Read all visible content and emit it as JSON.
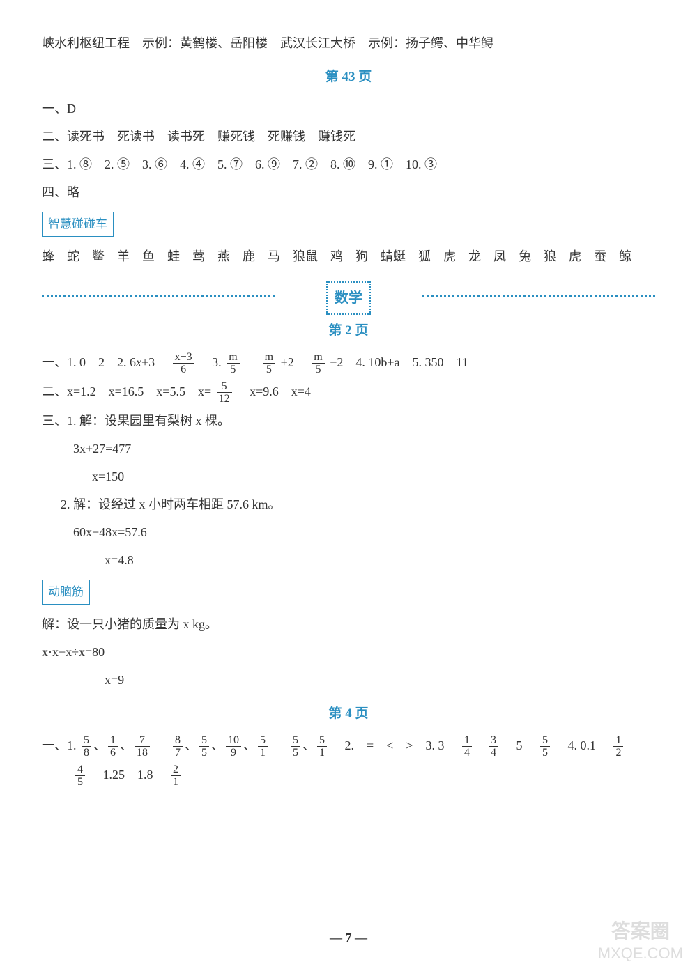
{
  "top_line": "峡水利枢纽工程　示例：黄鹤楼、岳阳楼　武汉长江大桥　示例：扬子鳄、中华鲟",
  "page43": {
    "header": "第 43 页",
    "l1": "一、D",
    "l2": "二、读死书　死读书　读书死　赚死钱　死赚钱　赚钱死",
    "l3": "三、1. ⑧　2. ⑤　3. ⑥　4. ④　5. ⑦　6. ⑨　7. ②　8. ⑩　9. ①　10. ③",
    "l4": "四、略",
    "tag": "智慧碰碰车",
    "l5": "蜂　蛇　鳖　羊　鱼　蛙　莺　燕　鹿　马　狼鼠　鸡　狗　蜻蜓　狐　虎　龙　凤　兔　狼　虎　蚕　鲸"
  },
  "subject": "数学",
  "page2": {
    "header": "第 2 页",
    "q1": {
      "prefix": "一、1. 0　2　2. 6",
      "x3": "x",
      "plus3": "+3　",
      "f1n": "x−3",
      "f1d": "6",
      "mid3": "　3. ",
      "f2n": "m",
      "f2d": "5",
      "sp": "　",
      "f3n": "m",
      "f3d": "5",
      "plus2": "+2　",
      "f4n": "m",
      "f4d": "5",
      "m2": "−2　4. 10b+a　5. 350　11"
    },
    "q2": {
      "prefix": "二、x=1.2　x=16.5　x=5.5　x=",
      "fn": "5",
      "fd": "12",
      "suffix": "　x=9.6　x=4"
    },
    "q3_1a": "三、1. 解：设果园里有梨树 x 棵。",
    "q3_1b": "3x+27=477",
    "q3_1c": "x=150",
    "q3_2a": "2. 解：设经过 x 小时两车相距 57.6 km。",
    "q3_2b": "60x−48x=57.6",
    "q3_2c": "x=4.8",
    "tag": "动脑筋",
    "b1": "解：设一只小猪的质量为 x kg。",
    "b2": "x·x−x÷x=80",
    "b3": "x=9"
  },
  "page4": {
    "header": "第 4 页",
    "line1": {
      "p": "一、1. ",
      "fracs_a": [
        {
          "n": "5",
          "d": "8"
        },
        {
          "n": "1",
          "d": "6"
        },
        {
          "n": "7",
          "d": "18"
        }
      ],
      "sep1": "　",
      "fracs_b": [
        {
          "n": "8",
          "d": "7"
        },
        {
          "n": "5",
          "d": "5"
        },
        {
          "n": "10",
          "d": "9"
        },
        {
          "n": "5",
          "d": "1"
        }
      ],
      "sep2": "　",
      "fracs_c": [
        {
          "n": "5",
          "d": "5"
        },
        {
          "n": "5",
          "d": "1"
        }
      ],
      "m2": "　2.　=　<　>　3. 3　",
      "fracs_d": [
        {
          "n": "1",
          "d": "4"
        },
        {
          "n": "3",
          "d": "4"
        }
      ],
      "five": "　5　",
      "fracs_e": [
        {
          "n": "5",
          "d": "5"
        }
      ],
      "m4": "　4. 0.1　",
      "fracs_f": [
        {
          "n": "1",
          "d": "2"
        }
      ]
    },
    "line2": {
      "fracs_g": [
        {
          "n": "4",
          "d": "5"
        }
      ],
      "mid": "　1.25　1.8　",
      "fracs_h": [
        {
          "n": "2",
          "d": "1"
        }
      ]
    }
  },
  "footer": "— 7 —",
  "watermark": {
    "l1": "答案圈",
    "l2": "MXQE.COM"
  }
}
